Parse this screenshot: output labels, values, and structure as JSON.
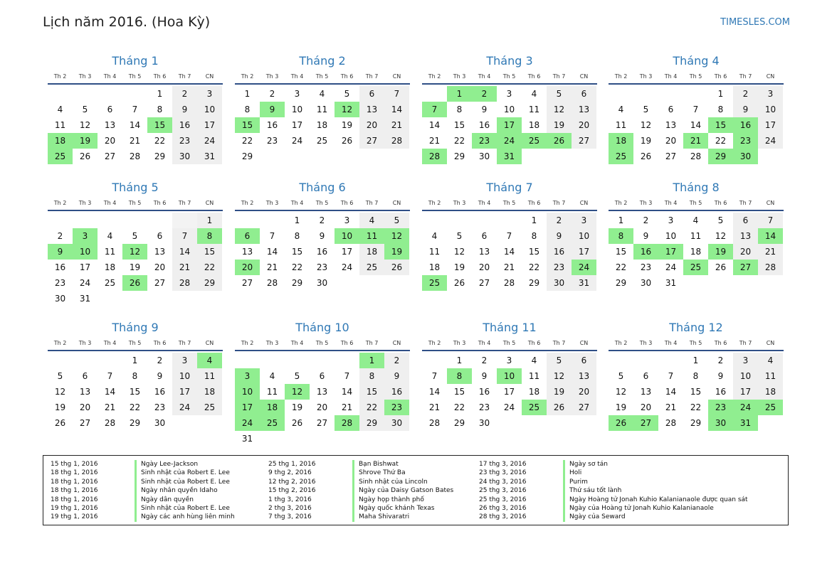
{
  "header": {
    "title": "Lịch năm 2016. (Hoa Kỳ)",
    "site": "TIMESLES.COM"
  },
  "colors": {
    "accent": "#2f78b5",
    "holiday": "#90ee90",
    "weekend": "#efefef"
  },
  "weekdays": [
    "Th 2",
    "Th 3",
    "Th 4",
    "Th 5",
    "Th 6",
    "Th 7",
    "CN"
  ],
  "months": [
    {
      "name": "Tháng 1",
      "offset": 4,
      "days": 31,
      "holidays": [
        15,
        18,
        19,
        25
      ]
    },
    {
      "name": "Tháng 2",
      "offset": 0,
      "days": 29,
      "holidays": [
        9,
        12,
        15
      ]
    },
    {
      "name": "Tháng 3",
      "offset": 1,
      "days": 31,
      "holidays": [
        1,
        2,
        7,
        17,
        23,
        24,
        25,
        26,
        28,
        31
      ]
    },
    {
      "name": "Tháng 4",
      "offset": 4,
      "days": 30,
      "holidays": [
        15,
        16,
        18,
        21,
        23,
        25,
        29,
        30
      ]
    },
    {
      "name": "Tháng 5",
      "offset": 6,
      "days": 31,
      "holidays": [
        3,
        8,
        9,
        10,
        12,
        26
      ]
    },
    {
      "name": "Tháng 6",
      "offset": 2,
      "days": 30,
      "holidays": [
        6,
        10,
        11,
        12,
        19,
        20
      ]
    },
    {
      "name": "Tháng 7",
      "offset": 4,
      "days": 31,
      "holidays": [
        24,
        25
      ]
    },
    {
      "name": "Tháng 8",
      "offset": 0,
      "days": 31,
      "holidays": [
        8,
        14,
        16,
        17,
        19,
        25,
        27
      ]
    },
    {
      "name": "Tháng 9",
      "offset": 3,
      "days": 30,
      "holidays": [
        4
      ]
    },
    {
      "name": "Tháng 10",
      "offset": 5,
      "days": 31,
      "holidays": [
        1,
        3,
        10,
        12,
        17,
        18,
        23,
        24,
        25,
        28
      ]
    },
    {
      "name": "Tháng 11",
      "offset": 1,
      "days": 30,
      "holidays": [
        8,
        10,
        25
      ]
    },
    {
      "name": "Tháng 12",
      "offset": 3,
      "days": 31,
      "holidays": [
        23,
        24,
        25,
        26,
        27,
        30,
        31
      ]
    }
  ],
  "holiday_list": [
    [
      {
        "date": "15 thg 1, 2016",
        "name": "Ngày Lee-Jackson"
      },
      {
        "date": "18 thg 1, 2016",
        "name": "Sinh nhật của Robert E. Lee"
      },
      {
        "date": "18 thg 1, 2016",
        "name": "Sinh nhật của Robert E. Lee"
      },
      {
        "date": "18 thg 1, 2016",
        "name": "Ngày nhân quyền Idaho"
      },
      {
        "date": "18 thg 1, 2016",
        "name": "Ngày dân quyền"
      },
      {
        "date": "19 thg 1, 2016",
        "name": "Sinh nhật của Robert E. Lee"
      },
      {
        "date": "19 thg 1, 2016",
        "name": "Ngày các anh hùng liên minh"
      }
    ],
    [
      {
        "date": "25 thg 1, 2016",
        "name": "Bạn Bishwat"
      },
      {
        "date": "9 thg 2, 2016",
        "name": "Shrove Thứ Ba"
      },
      {
        "date": "12 thg 2, 2016",
        "name": "Sinh nhật của Lincoln"
      },
      {
        "date": "15 thg 2, 2016",
        "name": "Ngày của Daisy Gatson Bates"
      },
      {
        "date": "1 thg 3, 2016",
        "name": "Ngày họp thành phố"
      },
      {
        "date": "2 thg 3, 2016",
        "name": "Ngày quốc khánh Texas"
      },
      {
        "date": "7 thg 3, 2016",
        "name": "Maha Shivaratri"
      }
    ],
    [
      {
        "date": "17 thg 3, 2016",
        "name": "Ngày sơ tán"
      },
      {
        "date": "23 thg 3, 2016",
        "name": "Holi"
      },
      {
        "date": "24 thg 3, 2016",
        "name": "Purim"
      },
      {
        "date": "25 thg 3, 2016",
        "name": "Thứ sáu tốt lành"
      },
      {
        "date": "25 thg 3, 2016",
        "name": "Ngày Hoàng tử Jonah Kuhio Kalanianaole được quan sát"
      },
      {
        "date": "26 thg 3, 2016",
        "name": "Ngày của Hoàng tử Jonah Kuhio Kalanianaole"
      },
      {
        "date": "28 thg 3, 2016",
        "name": "Ngày của Seward"
      }
    ]
  ]
}
